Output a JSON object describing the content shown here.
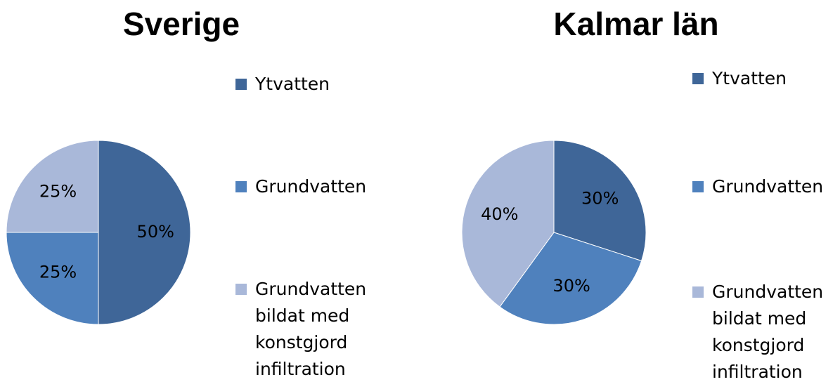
{
  "chart_data": [
    {
      "type": "pie",
      "title": "Sverige",
      "categories": [
        "Ytvatten",
        "Grundvatten",
        "Grundvatten bildat med konstgjord infiltration"
      ],
      "values": [
        50,
        25,
        25
      ],
      "value_labels": [
        "50%",
        "25%",
        "25%"
      ],
      "colors": [
        "#3f6698",
        "#4f81bd",
        "#a9b8d9"
      ]
    },
    {
      "type": "pie",
      "title": "Kalmar län",
      "categories": [
        "Ytvatten",
        "Grundvatten",
        "Grundvatten bildat med konstgjord infiltration"
      ],
      "values": [
        30,
        30,
        40
      ],
      "value_labels": [
        "30%",
        "30%",
        "40%"
      ],
      "colors": [
        "#3f6698",
        "#4f81bd",
        "#a9b8d9"
      ]
    }
  ]
}
